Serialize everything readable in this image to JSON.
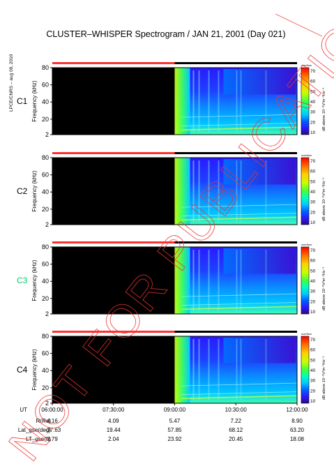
{
  "title": "CLUSTER–WHISPER Spectrogram / JAN 21, 2001 (Day 021)",
  "side_credit": "LPCE/CNRS – aug 09, 2010",
  "watermark": "NOT FOR PUBLICATION",
  "colorbar": {
    "label": "dB above 10⁻⁸V²m⁻²Hz⁻¹",
    "ticks": [
      "70",
      "60",
      "50",
      "40",
      "30",
      "20",
      "10"
    ],
    "tiny_label": "overflow",
    "colors": [
      "#ff0000",
      "#ff6a00",
      "#ffd000",
      "#c8ff00",
      "#40ff40",
      "#00ffc0",
      "#00c8ff",
      "#0060ff",
      "#2a1aff",
      "#2d0a80"
    ]
  },
  "colors": {
    "coverage_missing": "#ff3030",
    "coverage_present": "#000000",
    "c3_label": "#00cc66"
  },
  "chart_data": {
    "type": "heatmap",
    "x_label": "UT",
    "y_label": "Frequency (kHz)",
    "y_ticks": [
      "80",
      "60",
      "40",
      "20",
      "2"
    ],
    "ylim": [
      2,
      80
    ],
    "x_ticks": [
      "06:00:00",
      "07:30:00",
      "09:00:00",
      "10:30:00",
      "12:00:00"
    ],
    "panels": [
      {
        "name": "C1",
        "data_start": "09:00:00",
        "data_end": "12:00:00"
      },
      {
        "name": "C2",
        "data_start": "09:00:00",
        "data_end": "12:00:00"
      },
      {
        "name": "C3",
        "data_start": "09:00:00",
        "data_end": "12:00:00"
      },
      {
        "name": "C4",
        "data_start": "09:00:00",
        "data_end": "12:00:00"
      }
    ],
    "ephemeris": [
      {
        "label": "R(Re)",
        "values": [
          "4.16",
          "4.09",
          "5.47",
          "7.22",
          "8.90"
        ]
      },
      {
        "label": "Lat_gse(deg)",
        "values": [
          "–37.63",
          "19.44",
          "57.85",
          "68.12",
          "63.20"
        ]
      },
      {
        "label": "LT_gse(h)",
        "values": [
          "3.79",
          "2.04",
          "23.92",
          "20.45",
          "18.08"
        ]
      }
    ]
  }
}
